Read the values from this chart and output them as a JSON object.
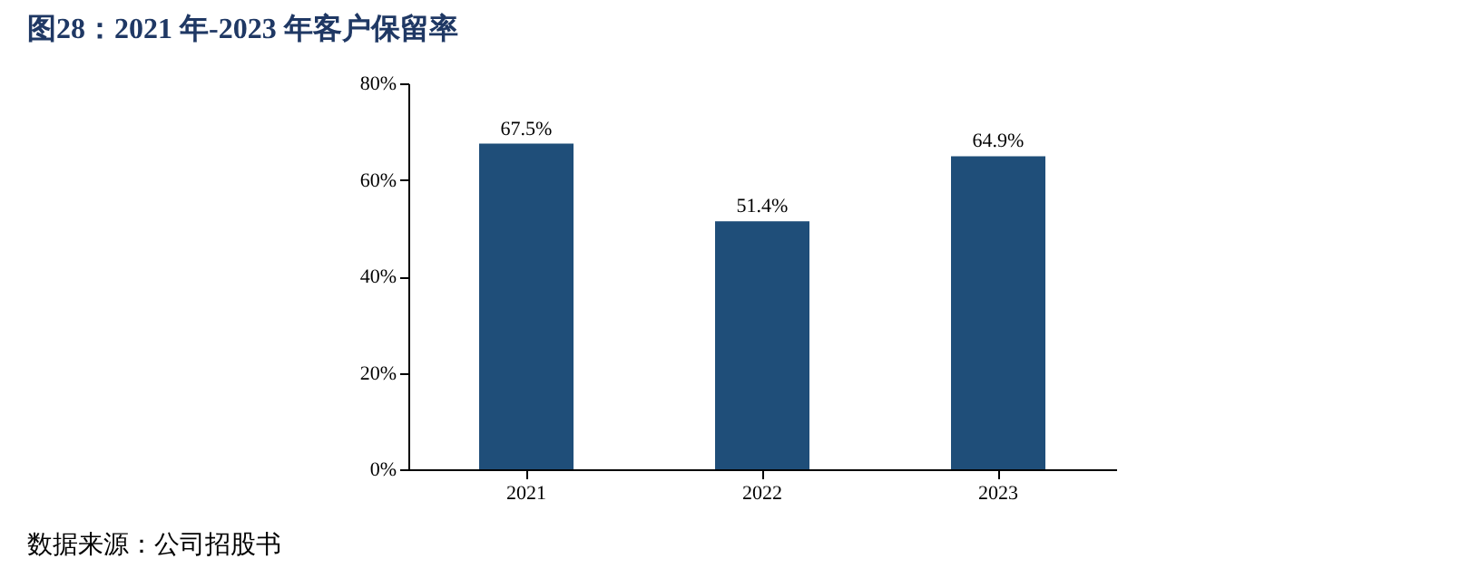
{
  "chart_data": {
    "type": "bar",
    "title": "图28：2021 年-2023 年客户保留率",
    "categories": [
      "2021",
      "2022",
      "2023"
    ],
    "series": [
      {
        "color": "#1f4e79",
        "values": [
          67.5,
          51.4,
          64.9
        ],
        "value_labels": [
          "67.5%",
          "51.4%",
          "64.9%"
        ]
      }
    ],
    "ylim": [
      0,
      80
    ],
    "yticks": [
      {
        "value": 0,
        "label": "0%"
      },
      {
        "value": 20,
        "label": "20%"
      },
      {
        "value": 40,
        "label": "40%"
      },
      {
        "value": 60,
        "label": "60%"
      },
      {
        "value": 80,
        "label": "80%"
      }
    ],
    "grid": false,
    "annotations": [
      "数据来源：公司招股书"
    ]
  }
}
